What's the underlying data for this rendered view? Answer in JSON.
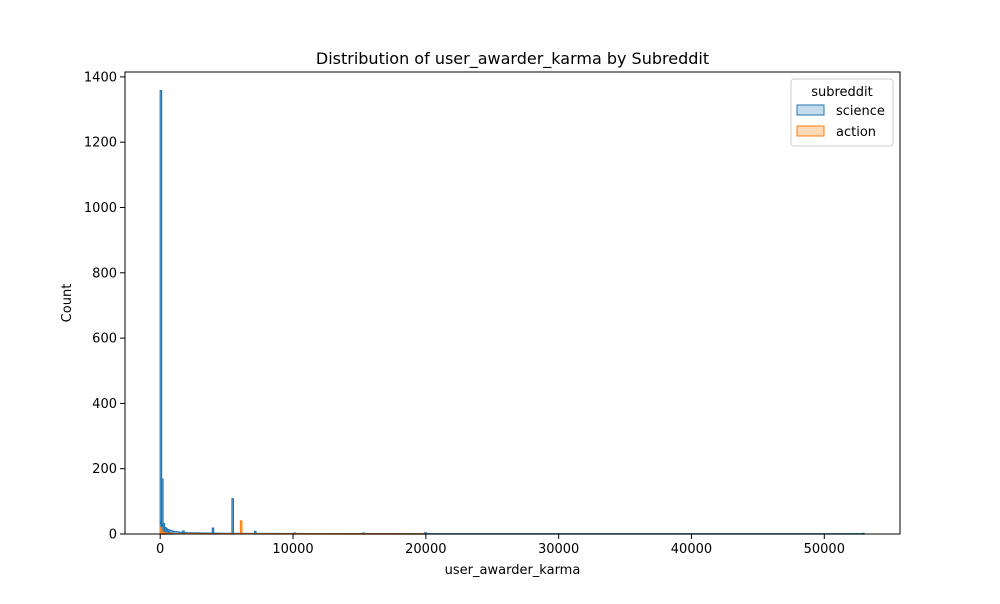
{
  "chart_data": {
    "type": "histogram",
    "title": "Distribution of user_awarder_karma by Subreddit",
    "xlabel": "user_awarder_karma",
    "ylabel": "Count",
    "xlim": [
      -2650,
      55700
    ],
    "ylim": [
      0,
      1415
    ],
    "x_ticks": [
      0,
      10000,
      20000,
      30000,
      40000,
      50000
    ],
    "x_tick_labels": [
      "0",
      "10000",
      "20000",
      "30000",
      "40000",
      "50000"
    ],
    "y_ticks": [
      0,
      200,
      400,
      600,
      800,
      1000,
      1200,
      1400
    ],
    "y_tick_labels": [
      "0",
      "200",
      "400",
      "600",
      "800",
      "1000",
      "1200",
      "1400"
    ],
    "grid": false,
    "legend": {
      "title": "subreddit",
      "placement": "top-right"
    },
    "series": [
      {
        "name": "science",
        "color": "#1f77b4",
        "fill": "#c6dcec",
        "kde": [
          [
            0,
            40
          ],
          [
            100,
            30
          ],
          [
            300,
            22
          ],
          [
            600,
            13
          ],
          [
            1000,
            8
          ],
          [
            1500,
            5
          ],
          [
            2000,
            3.5
          ],
          [
            3000,
            2.5
          ],
          [
            5000,
            1.5
          ],
          [
            8000,
            1
          ],
          [
            12000,
            0.7
          ],
          [
            20000,
            0.5
          ],
          [
            30000,
            0.4
          ],
          [
            40000,
            0.3
          ],
          [
            53000,
            0.2
          ]
        ],
        "bins": [
          {
            "x0": 0,
            "x1": 106,
            "count": 1358
          },
          {
            "x0": 106,
            "x1": 212,
            "count": 168
          },
          {
            "x0": 212,
            "x1": 318,
            "count": 32
          },
          {
            "x0": 318,
            "x1": 424,
            "count": 20
          },
          {
            "x0": 424,
            "x1": 530,
            "count": 12
          },
          {
            "x0": 530,
            "x1": 636,
            "count": 8
          },
          {
            "x0": 636,
            "x1": 742,
            "count": 6
          },
          {
            "x0": 742,
            "x1": 848,
            "count": 4
          },
          {
            "x0": 848,
            "x1": 954,
            "count": 3
          },
          {
            "x0": 954,
            "x1": 1060,
            "count": 3
          },
          {
            "x0": 1696,
            "x1": 1802,
            "count": 9
          },
          {
            "x0": 3922,
            "x1": 4028,
            "count": 18
          },
          {
            "x0": 5406,
            "x1": 5512,
            "count": 108
          },
          {
            "x0": 7102,
            "x1": 7208,
            "count": 8
          },
          {
            "x0": 10070,
            "x1": 10176,
            "count": 3
          },
          {
            "x0": 15264,
            "x1": 15370,
            "count": 3
          },
          {
            "x0": 19928,
            "x1": 20034,
            "count": 4
          },
          {
            "x0": 52894,
            "x1": 53000,
            "count": 2
          }
        ]
      },
      {
        "name": "action",
        "color": "#ff7f0e",
        "fill": "#ffd8b5",
        "kde": [
          [
            0,
            12
          ],
          [
            150,
            8
          ],
          [
            300,
            4
          ],
          [
            600,
            2
          ],
          [
            1000,
            1
          ],
          [
            2000,
            0.6
          ],
          [
            4000,
            0.5
          ],
          [
            6100,
            0.9
          ],
          [
            8000,
            0.4
          ],
          [
            12000,
            0.2
          ],
          [
            20000,
            0.1
          ]
        ],
        "bins": [
          {
            "x0": 0,
            "x1": 106,
            "count": 20
          },
          {
            "x0": 106,
            "x1": 212,
            "count": 6
          },
          {
            "x0": 212,
            "x1": 318,
            "count": 3
          },
          {
            "x0": 318,
            "x1": 424,
            "count": 2
          },
          {
            "x0": 6042,
            "x1": 6148,
            "count": 40
          }
        ]
      }
    ]
  }
}
